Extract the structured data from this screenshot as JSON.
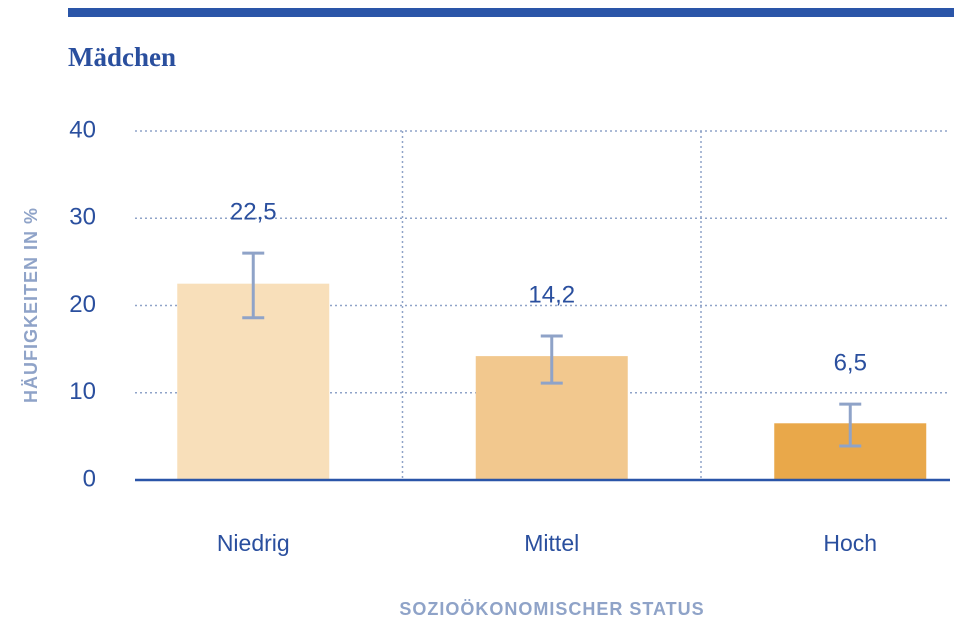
{
  "chart_data": {
    "type": "bar",
    "title": "Mädchen",
    "y_label": "HÄUFIGKEITEN IN %",
    "x_label": "SOZIOÖKONOMISCHER STATUS",
    "categories": [
      "Niedrig",
      "Mittel",
      "Hoch"
    ],
    "values": [
      22.5,
      14.2,
      6.5
    ],
    "value_labels": [
      "22,5",
      "14,2",
      "6,5"
    ],
    "ci_low": [
      18.6,
      11.1,
      3.9
    ],
    "ci_high": [
      26.0,
      16.5,
      8.7
    ],
    "colors": [
      "#f8dfba",
      "#f2c88e",
      "#e9a84a"
    ],
    "error_color": "#8fa3c8",
    "ylim": [
      0,
      40
    ],
    "yticks": [
      0,
      10,
      20,
      30,
      40
    ],
    "grid": true
  }
}
